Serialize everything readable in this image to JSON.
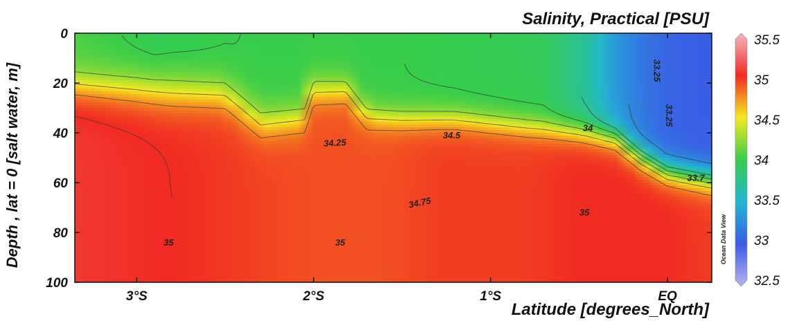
{
  "chart_data": {
    "type": "heatmap",
    "title": "Salinity, Practical [PSU]",
    "xlabel": "Latitude [degrees_North]",
    "ylabel": "Depth , lat = 0 [salt water, m]",
    "watermark": "Ocean Data View",
    "x_ticks": [
      {
        "value": -3,
        "label": "3°S"
      },
      {
        "value": -2,
        "label": "2°S"
      },
      {
        "value": -1,
        "label": "1°S"
      },
      {
        "value": 0,
        "label": "EQ"
      }
    ],
    "y_ticks": [
      {
        "value": 0,
        "label": "0"
      },
      {
        "value": 20,
        "label": "20"
      },
      {
        "value": 40,
        "label": "40"
      },
      {
        "value": 60,
        "label": "60"
      },
      {
        "value": 80,
        "label": "80"
      },
      {
        "value": 100,
        "label": "100"
      }
    ],
    "xlim": [
      -3.35,
      0.25
    ],
    "ylim": [
      0,
      100
    ],
    "y_inverted": true,
    "colorbar": {
      "range": [
        32.5,
        35.5
      ],
      "ticks": [
        "35.5",
        "35",
        "34.5",
        "34",
        "33.5",
        "33",
        "32.5"
      ],
      "stops": [
        {
          "value": 32.5,
          "color": "#b9b4f2"
        },
        {
          "value": 33.0,
          "color": "#3a5ce6"
        },
        {
          "value": 33.5,
          "color": "#21b7d4"
        },
        {
          "value": 34.0,
          "color": "#37cd4a"
        },
        {
          "value": 34.5,
          "color": "#f5ea1e"
        },
        {
          "value": 35.0,
          "color": "#f12a22"
        },
        {
          "value": 35.5,
          "color": "#f6b7bf"
        }
      ]
    },
    "mixed_layer_depth": [
      [
        -3.35,
        18
      ],
      [
        -3.0,
        19
      ],
      [
        -2.5,
        21
      ],
      [
        -2.3,
        33
      ],
      [
        -2.05,
        31
      ],
      [
        -2.0,
        20
      ],
      [
        -1.82,
        20
      ],
      [
        -1.7,
        31
      ],
      [
        -1.5,
        32
      ],
      [
        -1.2,
        32
      ],
      [
        -0.8,
        35
      ],
      [
        -0.5,
        37
      ],
      [
        -0.3,
        39
      ],
      [
        -0.15,
        47
      ],
      [
        0.0,
        53
      ],
      [
        0.25,
        56
      ]
    ],
    "surface_salinity": [
      [
        -3.35,
        34.05
      ],
      [
        -2.9,
        33.95
      ],
      [
        -2.4,
        34.0
      ],
      [
        -1.5,
        34.0
      ],
      [
        -0.7,
        33.95
      ],
      [
        -0.45,
        33.7
      ],
      [
        -0.3,
        33.35
      ],
      [
        -0.15,
        33.15
      ],
      [
        0.0,
        33.05
      ],
      [
        0.25,
        33.0
      ]
    ],
    "deep_salinity": [
      [
        -3.35,
        35.05
      ],
      [
        -2.8,
        35.0
      ],
      [
        -2.0,
        34.9
      ],
      [
        -1.6,
        34.9
      ],
      [
        -1.3,
        34.95
      ],
      [
        -0.8,
        34.95
      ],
      [
        -0.5,
        35.0
      ],
      [
        0.0,
        35.0
      ],
      [
        0.25,
        34.95
      ]
    ],
    "contour_labels": [
      {
        "text": "34.25",
        "x": -1.88,
        "y": 44,
        "angle": -3
      },
      {
        "text": "34.5",
        "x": -1.22,
        "y": 41,
        "angle": 0
      },
      {
        "text": "34",
        "x": -0.45,
        "y": 38,
        "angle": 0
      },
      {
        "text": "33.25",
        "x": -0.06,
        "y": 15,
        "angle": 90
      },
      {
        "text": "33.25",
        "x": 0.01,
        "y": 33,
        "angle": 90
      },
      {
        "text": "33.7",
        "x": 0.16,
        "y": 58,
        "angle": 0
      },
      {
        "text": "34.75",
        "x": -1.4,
        "y": 68,
        "angle": -12
      },
      {
        "text": "35",
        "x": -0.47,
        "y": 72,
        "angle": 0
      },
      {
        "text": "35",
        "x": -2.82,
        "y": 84,
        "angle": 0
      },
      {
        "text": "35",
        "x": -1.85,
        "y": 84,
        "angle": 0
      }
    ]
  }
}
